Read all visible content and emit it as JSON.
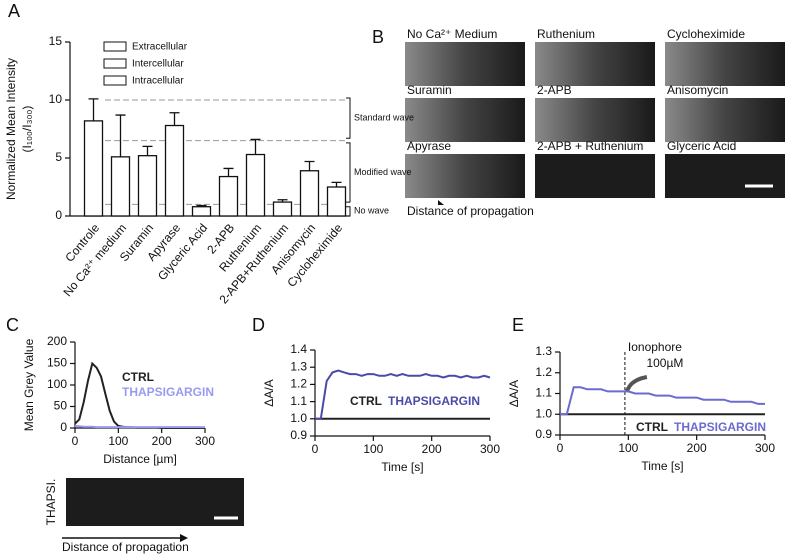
{
  "figure": {
    "panels": [
      "A",
      "B",
      "C",
      "D",
      "E"
    ],
    "images": {
      "labels": [
        "No Ca²⁺ Medium",
        "Ruthenium",
        "Cycloheximide",
        "Suramin",
        "2-APB",
        "Anisomycin",
        "Apyrase",
        "2-APB + Ruthenium",
        "Glyceric Acid"
      ],
      "caption": "Distance of propagation"
    },
    "thapsi": {
      "label": "THAPSI.",
      "caption": "Distance of propagation"
    }
  },
  "chart_data": [
    {
      "type": "bar",
      "ylabel": [
        "Normalized Mean Intensity",
        "(I₁₀₀/I₃₀₀)"
      ],
      "categories": [
        "Controle",
        "No Ca²⁺ medium",
        "Suramin",
        "Apyrase",
        "Glyceric Acid",
        "2-APB",
        "Ruthenium",
        "2-APB+Ruthenium",
        "Anisomycin",
        "Cycloheximide"
      ],
      "values": [
        8.2,
        5.1,
        5.2,
        7.8,
        0.8,
        3.4,
        5.3,
        1.2,
        3.9,
        2.5
      ],
      "errors": [
        1.9,
        3.6,
        0.8,
        1.1,
        0.1,
        0.7,
        1.3,
        0.2,
        0.8,
        0.4
      ],
      "color": "#ffffff",
      "ylim": [
        0,
        15
      ],
      "yticks": [
        0,
        5,
        10,
        15
      ],
      "legend": [
        "Extracellular",
        "Intercellular",
        "Intracellular"
      ],
      "thresholds": [
        10,
        6.5,
        1
      ],
      "waves": [
        "Standard wave",
        "Modified wave",
        "No wave"
      ]
    },
    {
      "type": "line",
      "xlabel": "Distance [µm]",
      "ylabel": "Mean Grey Value",
      "x": [
        0,
        10,
        20,
        30,
        40,
        50,
        60,
        70,
        80,
        90,
        100,
        110,
        120,
        130,
        140,
        150,
        160,
        170,
        180,
        190,
        200,
        210,
        220,
        230,
        240,
        250,
        260,
        270,
        280,
        290,
        300
      ],
      "series": [
        {
          "name": "CTRL",
          "color": "#222222",
          "values": [
            10,
            20,
            60,
            110,
            150,
            140,
            120,
            80,
            40,
            15,
            5,
            3,
            2,
            2,
            1,
            1,
            1,
            1,
            1,
            1,
            0,
            0,
            0,
            0,
            0,
            0,
            0,
            0,
            0,
            0,
            0
          ]
        },
        {
          "name": "THAPSIGARGIN",
          "color": "#9a9af0",
          "values": [
            5,
            4,
            3,
            3,
            3,
            2,
            2,
            2,
            2,
            2,
            2,
            2,
            2,
            2,
            2,
            2,
            2,
            2,
            2,
            2,
            2,
            2,
            2,
            2,
            2,
            2,
            2,
            2,
            2,
            2,
            2
          ]
        }
      ],
      "xlim": [
        0,
        300
      ],
      "ylim": [
        0,
        200
      ],
      "xticks": [
        0,
        100,
        200,
        300
      ],
      "yticks": [
        0,
        50,
        100,
        150,
        200
      ]
    },
    {
      "type": "line",
      "xlabel": "Time [s]",
      "ylabel": "ΔA/A",
      "x": [
        0,
        10,
        20,
        30,
        40,
        50,
        60,
        70,
        80,
        90,
        100,
        110,
        120,
        130,
        140,
        150,
        160,
        170,
        180,
        190,
        200,
        210,
        220,
        230,
        240,
        250,
        260,
        270,
        280,
        290,
        300
      ],
      "series": [
        {
          "name": "CTRL",
          "color": "#222222",
          "values": [
            1,
            1,
            1,
            1,
            1,
            1,
            1,
            1,
            1,
            1,
            1,
            1,
            1,
            1,
            1,
            1,
            1,
            1,
            1,
            1,
            1,
            1,
            1,
            1,
            1,
            1,
            1,
            1,
            1,
            1,
            1
          ]
        },
        {
          "name": "THAPSIGARGIN",
          "color": "#4a4aa8",
          "values": [
            1,
            1,
            1.22,
            1.27,
            1.28,
            1.27,
            1.26,
            1.26,
            1.25,
            1.26,
            1.26,
            1.25,
            1.25,
            1.26,
            1.25,
            1.26,
            1.25,
            1.25,
            1.25,
            1.26,
            1.25,
            1.25,
            1.24,
            1.25,
            1.25,
            1.24,
            1.25,
            1.24,
            1.24,
            1.25,
            1.24
          ]
        }
      ],
      "xlim": [
        0,
        300
      ],
      "ylim": [
        0.9,
        1.4
      ],
      "xticks": [
        0,
        100,
        200,
        300
      ],
      "yticks": [
        0.9,
        {
          "value": 1,
          "label": "1.0"
        },
        1.1,
        1.2,
        1.3,
        1.4
      ]
    },
    {
      "type": "line",
      "xlabel": "Time [s]",
      "ylabel": "ΔA/A",
      "x": [
        0,
        10,
        20,
        30,
        40,
        50,
        60,
        70,
        80,
        90,
        100,
        110,
        120,
        130,
        140,
        150,
        160,
        170,
        180,
        190,
        200,
        210,
        220,
        230,
        240,
        250,
        260,
        270,
        280,
        290,
        300
      ],
      "series": [
        {
          "name": "CTRL",
          "color": "#222222",
          "values": [
            1,
            1,
            1,
            1,
            1,
            1,
            1,
            1,
            1,
            1,
            1,
            1,
            1,
            1,
            1,
            1,
            1,
            1,
            1,
            1,
            1,
            1,
            1,
            1,
            1,
            1,
            1,
            1,
            1,
            1,
            1
          ]
        },
        {
          "name": "THAPSIGARGIN",
          "color": "#6b6bd0",
          "values": [
            1,
            1,
            1.13,
            1.13,
            1.12,
            1.12,
            1.12,
            1.11,
            1.11,
            1.11,
            1.11,
            1.1,
            1.1,
            1.1,
            1.09,
            1.09,
            1.09,
            1.08,
            1.08,
            1.08,
            1.08,
            1.07,
            1.07,
            1.07,
            1.07,
            1.06,
            1.06,
            1.06,
            1.06,
            1.05,
            1.05
          ]
        }
      ],
      "xlim": [
        0,
        300
      ],
      "ylim": [
        0.9,
        1.3
      ],
      "xticks": [
        0,
        100,
        200,
        300
      ],
      "yticks": [
        0.9,
        {
          "value": 1,
          "label": "1.0"
        },
        1.1,
        1.2,
        1.3
      ],
      "annotation": {
        "text": [
          "Ionophore",
          "100µM"
        ],
        "x": 95
      }
    }
  ]
}
